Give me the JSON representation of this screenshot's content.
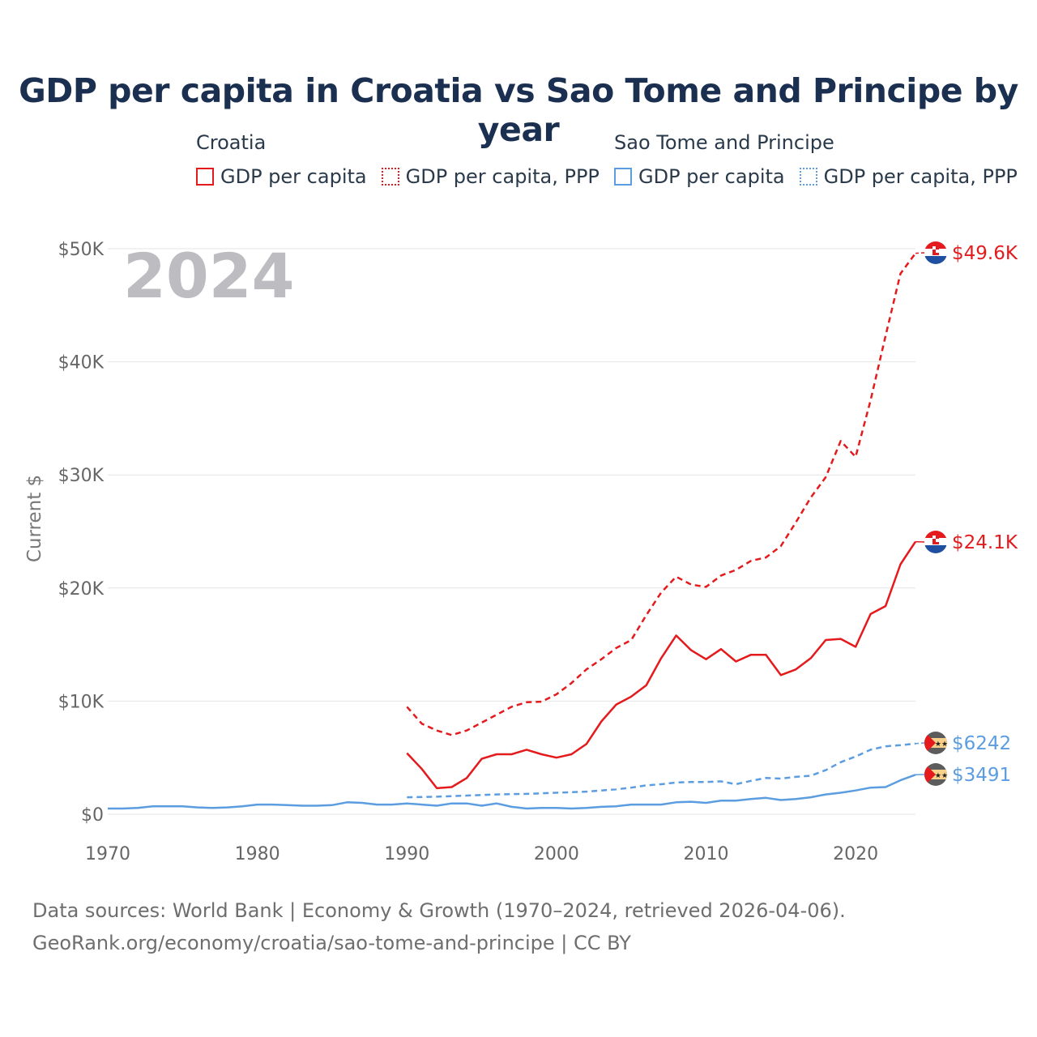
{
  "title": "GDP per capita in Croatia vs Sao Tome and Principe by year",
  "year_label": "2024",
  "legend": {
    "groups": [
      {
        "name": "Croatia",
        "color": "#e41a1c",
        "items": [
          {
            "label": "GDP per capita",
            "style": "solid"
          },
          {
            "label": "GDP per capita, PPP",
            "style": "dotted"
          }
        ]
      },
      {
        "name": "Sao Tome and Principe",
        "color": "#5b9de0",
        "items": [
          {
            "label": "GDP per capita",
            "style": "solid"
          },
          {
            "label": "GDP per capita, PPP",
            "style": "dotted"
          }
        ]
      }
    ]
  },
  "footer": {
    "line1": "Data sources: World Bank | Economy & Growth (1970–2024, retrieved 2026-04-06).",
    "line2": "GeoRank.org/economy/croatia/sao-tome-and-principe | CC BY"
  },
  "chart_data": {
    "type": "line",
    "title": "GDP per capita in Croatia vs Sao Tome and Principe by year",
    "xlabel": "",
    "ylabel": "Current $",
    "xlim": [
      1970,
      2024
    ],
    "ylim": [
      0,
      50000
    ],
    "x_ticks": [
      1970,
      1980,
      1990,
      2000,
      2010,
      2020
    ],
    "x_tick_labels": [
      "1970",
      "1980",
      "1990",
      "2000",
      "2010",
      "2020"
    ],
    "y_ticks": [
      0,
      10000,
      20000,
      30000,
      40000,
      50000
    ],
    "y_tick_labels": [
      "$0",
      "$10K",
      "$20K",
      "$30K",
      "$40K",
      "$50K"
    ],
    "series": [
      {
        "name": "Croatia GDP per capita, PPP",
        "color": "#e41a1c",
        "dash": "dashed",
        "end_label": "$49.6K",
        "x": [
          1990,
          1991,
          1992,
          1993,
          1994,
          1995,
          1996,
          1997,
          1998,
          1999,
          2000,
          2001,
          2002,
          2003,
          2004,
          2005,
          2006,
          2007,
          2008,
          2009,
          2010,
          2011,
          2012,
          2013,
          2014,
          2015,
          2016,
          2017,
          2018,
          2019,
          2020,
          2021,
          2022,
          2023,
          2024
        ],
        "values": [
          9500,
          8000,
          7400,
          7000,
          7400,
          8100,
          8800,
          9500,
          9900,
          9950,
          10600,
          11600,
          12800,
          13700,
          14700,
          15400,
          17600,
          19600,
          21000,
          20300,
          20100,
          21100,
          21600,
          22400,
          22700,
          23700,
          25800,
          28000,
          29800,
          33000,
          31600,
          36600,
          42300,
          47800,
          49600
        ]
      },
      {
        "name": "Croatia GDP per capita",
        "color": "#e41a1c",
        "dash": "solid",
        "end_label": "$24.1K",
        "x": [
          1990,
          1991,
          1992,
          1993,
          1994,
          1995,
          1996,
          1997,
          1998,
          1999,
          2000,
          2001,
          2002,
          2003,
          2004,
          2005,
          2006,
          2007,
          2008,
          2009,
          2010,
          2011,
          2012,
          2013,
          2014,
          2015,
          2016,
          2017,
          2018,
          2019,
          2020,
          2021,
          2022,
          2023,
          2024
        ],
        "values": [
          5400,
          4000,
          2300,
          2400,
          3200,
          4900,
          5300,
          5300,
          5700,
          5300,
          5000,
          5300,
          6200,
          8200,
          9700,
          10400,
          11400,
          13800,
          15800,
          14500,
          13700,
          14600,
          13500,
          14100,
          14100,
          12300,
          12800,
          13800,
          15400,
          15500,
          14800,
          17700,
          18400,
          22100,
          24100
        ]
      },
      {
        "name": "Sao Tome and Principe GDP per capita, PPP",
        "color": "#5b9de0",
        "dash": "dashed",
        "end_label": "$6242",
        "x": [
          1990,
          1991,
          1992,
          1993,
          1994,
          1995,
          1996,
          1997,
          1998,
          1999,
          2000,
          2001,
          2002,
          2003,
          2004,
          2005,
          2006,
          2007,
          2008,
          2009,
          2010,
          2011,
          2012,
          2013,
          2014,
          2015,
          2016,
          2017,
          2018,
          2019,
          2020,
          2021,
          2022,
          2023,
          2024
        ],
        "values": [
          1500,
          1520,
          1550,
          1600,
          1650,
          1700,
          1750,
          1780,
          1800,
          1850,
          1900,
          1950,
          2000,
          2100,
          2200,
          2350,
          2550,
          2650,
          2800,
          2850,
          2850,
          2900,
          2650,
          2950,
          3200,
          3150,
          3300,
          3400,
          3900,
          4600,
          5100,
          5700,
          6000,
          6100,
          6242
        ]
      },
      {
        "name": "Sao Tome and Principe GDP per capita",
        "color": "#5b9de0",
        "dash": "solid",
        "end_label": "$3491",
        "x": [
          1970,
          1971,
          1972,
          1973,
          1974,
          1975,
          1976,
          1977,
          1978,
          1979,
          1980,
          1981,
          1982,
          1983,
          1984,
          1985,
          1986,
          1987,
          1988,
          1989,
          1990,
          1991,
          1992,
          1993,
          1994,
          1995,
          1996,
          1997,
          1998,
          1999,
          2000,
          2001,
          2002,
          2003,
          2004,
          2005,
          2006,
          2007,
          2008,
          2009,
          2010,
          2011,
          2012,
          2013,
          2014,
          2015,
          2016,
          2017,
          2018,
          2019,
          2020,
          2021,
          2022,
          2023,
          2024
        ],
        "values": [
          500,
          500,
          550,
          700,
          700,
          700,
          600,
          550,
          600,
          700,
          850,
          850,
          800,
          750,
          750,
          800,
          1050,
          1000,
          850,
          850,
          950,
          850,
          750,
          950,
          950,
          750,
          950,
          650,
          500,
          550,
          550,
          500,
          550,
          650,
          700,
          850,
          850,
          850,
          1050,
          1100,
          1000,
          1200,
          1200,
          1350,
          1450,
          1250,
          1350,
          1500,
          1750,
          1900,
          2100,
          2350,
          2400,
          3000,
          3491
        ]
      }
    ]
  }
}
